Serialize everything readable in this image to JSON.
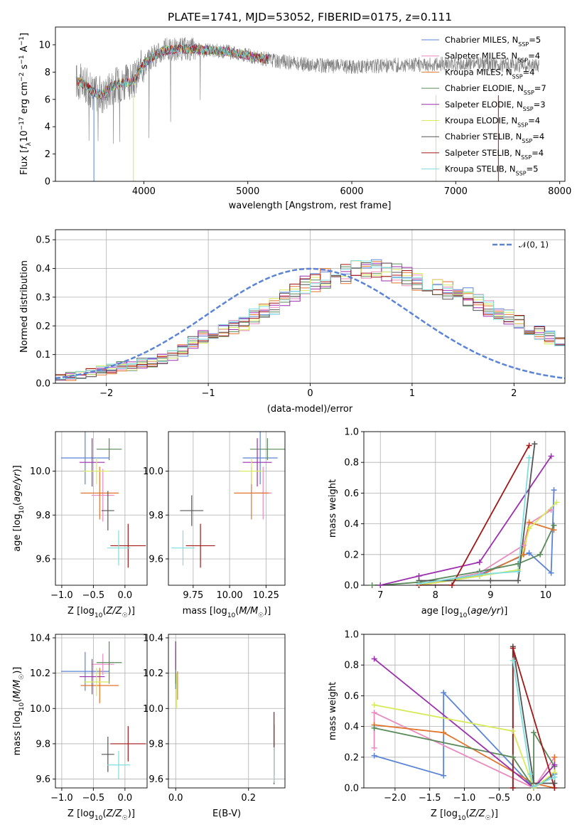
{
  "title": "PLATE=1741, MJD=53052, FIBERID=0175, z=0.111",
  "colors": {
    "Chabrier MILES": "#5b84d6",
    "Salpeter MILES": "#e98bbf",
    "Kroupa MILES": "#e0742a",
    "Chabrier ELODIE": "#5a8a5a",
    "Salpeter ELODIE": "#9c2fae",
    "Kroupa ELODIE": "#d6ea5a",
    "Chabrier STELIB": "#555555",
    "Salpeter STELIB": "#a01818",
    "Kroupa STELIB": "#7fdede",
    "data": "#808080",
    "normal": "#5b84d6"
  },
  "chart_data": [
    {
      "id": "spectrum",
      "type": "line",
      "title": "PLATE=1741, MJD=53052, FIBERID=0175, z=0.111",
      "xlabel": "wavelength [Angstrom, rest frame]",
      "ylabel": "Flux [f_λ 10^-17 erg cm^-2 s^-1 A^-1]",
      "xlim": [
        3150,
        8050
      ],
      "ylim": [
        0,
        11.3
      ],
      "xticks": [
        4000,
        5000,
        6000,
        7000,
        8000
      ],
      "yticks": [
        0,
        2,
        4,
        6,
        8,
        10
      ],
      "grid": false,
      "legend_position": "top-right",
      "legend": [
        {
          "name": "Chabrier MILES",
          "nssp": "5"
        },
        {
          "name": "Salpeter MILES",
          "nssp": "4"
        },
        {
          "name": "Kroupa MILES",
          "nssp": "4"
        },
        {
          "name": "Chabrier ELODIE",
          "nssp": "7"
        },
        {
          "name": "Salpeter ELODIE",
          "nssp": "3"
        },
        {
          "name": "Kroupa ELODIE",
          "nssp": "4"
        },
        {
          "name": "Chabrier STELIB",
          "nssp": "4"
        },
        {
          "name": "Salpeter STELIB",
          "nssp": "4"
        },
        {
          "name": "Kroupa STELIB",
          "nssp": "5"
        }
      ],
      "continuum_x": [
        3350,
        3450,
        3500,
        3600,
        3700,
        3800,
        3900,
        4000,
        4100,
        4200,
        4400,
        4600,
        4800,
        5000,
        5300,
        5600,
        6000,
        6400,
        6800,
        7200,
        7600,
        7800
      ],
      "continuum_y": [
        7.4,
        7.0,
        6.6,
        6.3,
        7.0,
        7.2,
        7.3,
        8.6,
        9.2,
        9.6,
        9.7,
        9.6,
        9.5,
        9.2,
        8.8,
        8.5,
        8.4,
        8.5,
        8.6,
        8.6,
        8.5,
        8.4
      ],
      "model_x_range": [
        3350,
        5200
      ]
    },
    {
      "id": "residuals",
      "type": "histogram",
      "xlabel": "(data-model)/error",
      "ylabel": "Normed distribution",
      "xlim": [
        -2.5,
        2.5
      ],
      "ylim": [
        0,
        0.535
      ],
      "xticks": [
        -2,
        -1,
        0,
        1,
        2
      ],
      "yticks": [
        0.0,
        0.1,
        0.2,
        0.3,
        0.4,
        0.5
      ],
      "grid": true,
      "legend_position": "top-right",
      "legend": [
        "𝒩(0, 1)"
      ],
      "bin_width": 0.1,
      "bin_start": -2.5,
      "base_profile": [
        0.02,
        0.025,
        0.03,
        0.04,
        0.045,
        0.05,
        0.06,
        0.06,
        0.07,
        0.075,
        0.085,
        0.1,
        0.115,
        0.14,
        0.16,
        0.17,
        0.18,
        0.195,
        0.21,
        0.23,
        0.25,
        0.27,
        0.3,
        0.32,
        0.34,
        0.35,
        0.365,
        0.37,
        0.38,
        0.39,
        0.4,
        0.4,
        0.395,
        0.385,
        0.37,
        0.355,
        0.34,
        0.33,
        0.32,
        0.31,
        0.3,
        0.28,
        0.26,
        0.245,
        0.23,
        0.21,
        0.19,
        0.175,
        0.16,
        0.145,
        0.13,
        0.12,
        0.1,
        0.09,
        0.08,
        0.07,
        0.06,
        0.05,
        0.045,
        0.04
      ],
      "normal_curve": {
        "mean": 0,
        "sigma": 1
      }
    },
    {
      "id": "age_vs_Z",
      "type": "errorbar",
      "xlabel": "Z [log10(Z/Z_sun)]",
      "ylabel": "age [log10(age/yr)]",
      "xlim": [
        -1.1,
        0.35
      ],
      "ylim": [
        9.48,
        10.18
      ],
      "xticks": [
        -1.0,
        -0.5,
        0.0
      ],
      "yticks": [
        9.6,
        9.8,
        10.0
      ],
      "grid": true,
      "points": [
        {
          "model": "Chabrier MILES",
          "x": -0.63,
          "xerr": 0.38,
          "y": 10.06,
          "yerr": 0.12
        },
        {
          "model": "Salpeter MILES",
          "x": -0.35,
          "xerr": 0.18,
          "y": 9.89,
          "yerr": 0.12
        },
        {
          "model": "Kroupa MILES",
          "x": -0.4,
          "xerr": 0.3,
          "y": 9.9,
          "yerr": 0.12
        },
        {
          "model": "Chabrier ELODIE",
          "x": -0.25,
          "xerr": 0.2,
          "y": 10.1,
          "yerr": 0.05
        },
        {
          "model": "Salpeter ELODIE",
          "x": -0.52,
          "xerr": 0.2,
          "y": 10.04,
          "yerr": 0.11
        },
        {
          "model": "Kroupa ELODIE",
          "x": -0.45,
          "xerr": 0.2,
          "y": 10.0,
          "yerr": 0.06
        },
        {
          "model": "Chabrier STELIB",
          "x": -0.27,
          "xerr": 0.1,
          "y": 9.82,
          "yerr": 0.09
        },
        {
          "model": "Salpeter STELIB",
          "x": 0.05,
          "xerr": 0.28,
          "y": 9.66,
          "yerr": 0.1
        },
        {
          "model": "Kroupa STELIB",
          "x": -0.1,
          "xerr": 0.18,
          "y": 9.65,
          "yerr": 0.08
        }
      ]
    },
    {
      "id": "age_vs_mass",
      "type": "errorbar",
      "xlabel": "mass [log10(M/M_sun)]",
      "ylabel": "",
      "xlim": [
        9.58,
        10.38
      ],
      "ylim": [
        9.48,
        10.18
      ],
      "xticks": [
        9.75,
        10.0,
        10.25
      ],
      "yticks": [
        9.6,
        9.8,
        10.0
      ],
      "grid": true,
      "points": [
        {
          "model": "Chabrier MILES",
          "x": 10.21,
          "xerr": 0.12,
          "y": 10.06,
          "yerr": 0.12
        },
        {
          "model": "Salpeter MILES",
          "x": 10.23,
          "xerr": 0.06,
          "y": 9.9,
          "yerr": 0.12
        },
        {
          "model": "Kroupa MILES",
          "x": 10.15,
          "xerr": 0.12,
          "y": 9.9,
          "yerr": 0.12
        },
        {
          "model": "Chabrier ELODIE",
          "x": 10.26,
          "xerr": 0.12,
          "y": 10.1,
          "yerr": 0.05
        },
        {
          "model": "Salpeter ELODIE",
          "x": 10.19,
          "xerr": 0.1,
          "y": 10.04,
          "yerr": 0.11
        },
        {
          "model": "Kroupa ELODIE",
          "x": 10.15,
          "xerr": 0.08,
          "y": 10.0,
          "yerr": 0.06
        },
        {
          "model": "Chabrier STELIB",
          "x": 9.74,
          "xerr": 0.08,
          "y": 9.82,
          "yerr": 0.07
        },
        {
          "model": "Salpeter STELIB",
          "x": 9.8,
          "xerr": 0.1,
          "y": 9.66,
          "yerr": 0.1
        },
        {
          "model": "Kroupa STELIB",
          "x": 9.68,
          "xerr": 0.08,
          "y": 9.65,
          "yerr": 0.08
        }
      ]
    },
    {
      "id": "weight_vs_age",
      "type": "line",
      "xlabel": "age [log10(age/yr)]",
      "ylabel": "mass weight",
      "xlim": [
        6.7,
        10.35
      ],
      "ylim": [
        0,
        1.0
      ],
      "xticks": [
        7,
        8,
        9,
        10
      ],
      "yticks": [
        0.0,
        0.2,
        0.4,
        0.6,
        0.8,
        1.0
      ],
      "grid": true,
      "series": [
        {
          "model": "Chabrier MILES",
          "x": [
            7.7,
            8.8,
            9.7,
            10.1,
            10.15
          ],
          "y": [
            0.0,
            0.07,
            0.21,
            0.08,
            0.62
          ]
        },
        {
          "model": "Salpeter MILES",
          "x": [
            7.7,
            8.8,
            9.6,
            9.7,
            10.1
          ],
          "y": [
            0.0,
            0.08,
            0.26,
            0.4,
            0.49
          ]
        },
        {
          "model": "Kroupa MILES",
          "x": [
            7.7,
            8.8,
            9.6,
            9.7,
            10.15
          ],
          "y": [
            0.0,
            0.06,
            0.2,
            0.41,
            0.36
          ]
        },
        {
          "model": "Chabrier ELODIE",
          "x": [
            6.85,
            7.0,
            7.7,
            8.8,
            9.5,
            9.9,
            10.15
          ],
          "y": [
            0.0,
            0.0,
            0.02,
            0.09,
            0.14,
            0.2,
            0.39
          ]
        },
        {
          "model": "Salpeter ELODIE",
          "x": [
            7.0,
            7.7,
            8.8,
            10.1
          ],
          "y": [
            0.0,
            0.06,
            0.15,
            0.84
          ]
        },
        {
          "model": "Kroupa ELODIE",
          "x": [
            7.7,
            8.8,
            9.5,
            9.7,
            10.2
          ],
          "y": [
            0.0,
            0.06,
            0.1,
            0.37,
            0.54
          ]
        },
        {
          "model": "Chabrier STELIB",
          "x": [
            7.7,
            9.0,
            9.5,
            9.8
          ],
          "y": [
            0.03,
            0.03,
            0.03,
            0.92
          ]
        },
        {
          "model": "Salpeter STELIB",
          "x": [
            7.7,
            8.3,
            9.7
          ],
          "y": [
            0.0,
            0.0,
            0.91
          ]
        },
        {
          "model": "Kroupa STELIB",
          "x": [
            7.7,
            8.8,
            9.5,
            9.7
          ],
          "y": [
            0.01,
            0.07,
            0.09,
            0.83
          ]
        }
      ]
    },
    {
      "id": "mass_vs_Z",
      "type": "errorbar",
      "xlabel": "Z [log10(Z/Z_sun)]",
      "ylabel": "mass [log10(M/M_sun)]",
      "xlim": [
        -1.1,
        0.35
      ],
      "ylim": [
        9.55,
        10.42
      ],
      "xticks": [
        -1.0,
        -0.5,
        0.0
      ],
      "yticks": [
        9.6,
        9.8,
        10.0,
        10.2,
        10.4
      ],
      "grid": true,
      "points": [
        {
          "model": "Chabrier MILES",
          "x": -0.63,
          "xerr": 0.38,
          "y": 10.21,
          "yerr": 0.11
        },
        {
          "model": "Salpeter MILES",
          "x": -0.35,
          "xerr": 0.18,
          "y": 10.25,
          "yerr": 0.06
        },
        {
          "model": "Kroupa MILES",
          "x": -0.4,
          "xerr": 0.3,
          "y": 10.13,
          "yerr": 0.1
        },
        {
          "model": "Chabrier ELODIE",
          "x": -0.25,
          "xerr": 0.2,
          "y": 10.26,
          "yerr": 0.12
        },
        {
          "model": "Salpeter ELODIE",
          "x": -0.52,
          "xerr": 0.2,
          "y": 10.18,
          "yerr": 0.1
        },
        {
          "model": "Kroupa ELODIE",
          "x": -0.45,
          "xerr": 0.2,
          "y": 10.15,
          "yerr": 0.08
        },
        {
          "model": "Chabrier STELIB",
          "x": -0.27,
          "xerr": 0.1,
          "y": 9.74,
          "yerr": 0.1
        },
        {
          "model": "Salpeter STELIB",
          "x": 0.05,
          "xerr": 0.28,
          "y": 9.8,
          "yerr": 0.1
        },
        {
          "model": "Kroupa STELIB",
          "x": -0.1,
          "xerr": 0.18,
          "y": 9.68,
          "yerr": 0.08
        }
      ]
    },
    {
      "id": "mass_vs_EBV",
      "type": "errorbar",
      "xlabel": "E(B-V)",
      "ylabel": "",
      "xlim": [
        -0.02,
        0.3
      ],
      "ylim": [
        9.55,
        10.42
      ],
      "xticks": [
        0.0,
        0.2
      ],
      "yticks": [
        9.6,
        9.8,
        10.0,
        10.2,
        10.4
      ],
      "grid": true,
      "points": [
        {
          "model": "Chabrier MILES",
          "x": 0.0,
          "xerr": 0.0,
          "y": 10.21,
          "yerr": 0.1
        },
        {
          "model": "Salpeter MILES",
          "x": 0.0,
          "xerr": 0.0,
          "y": 10.25,
          "yerr": 0.08
        },
        {
          "model": "Kroupa MILES",
          "x": 0.005,
          "xerr": 0.0,
          "y": 10.13,
          "yerr": 0.08
        },
        {
          "model": "Chabrier ELODIE",
          "x": 0.0,
          "xerr": 0.0,
          "y": 10.26,
          "yerr": 0.12
        },
        {
          "model": "Salpeter ELODIE",
          "x": 0.0,
          "xerr": 0.0,
          "y": 10.3,
          "yerr": 0.08
        },
        {
          "model": "Kroupa ELODIE",
          "x": 0.003,
          "xerr": 0.0,
          "y": 10.1,
          "yerr": 0.1
        },
        {
          "model": "Chabrier STELIB",
          "x": 0.27,
          "xerr": 0.0,
          "y": 9.74,
          "yerr": 0.17
        },
        {
          "model": "Salpeter STELIB",
          "x": 0.27,
          "xerr": 0.0,
          "y": 9.8,
          "yerr": 0.18
        },
        {
          "model": "Kroupa STELIB",
          "x": 0.27,
          "xerr": 0.0,
          "y": 9.68,
          "yerr": 0.1
        }
      ]
    },
    {
      "id": "weight_vs_Z",
      "type": "line",
      "xlabel": "Z [log10(Z/Z_sun)]",
      "ylabel": "mass weight",
      "xlim": [
        -2.45,
        0.45
      ],
      "ylim": [
        0,
        1.0
      ],
      "xticks": [
        -2.0,
        -1.5,
        -1.0,
        -0.5,
        0.0
      ],
      "yticks": [
        0.0,
        0.2,
        0.4,
        0.6,
        0.8,
        1.0
      ],
      "grid": true,
      "series": [
        {
          "model": "Chabrier MILES",
          "x": [
            -2.3,
            -1.3,
            -1.3,
            0.0,
            0.3
          ],
          "y": [
            0.21,
            0.08,
            0.62,
            0.0,
            0.09
          ]
        },
        {
          "model": "Salpeter MILES",
          "x": [
            -2.3,
            -2.3,
            0.0,
            0.3
          ],
          "y": [
            0.26,
            0.49,
            0.0,
            0.2
          ]
        },
        {
          "model": "Kroupa MILES",
          "x": [
            -2.3,
            -1.3,
            0.0,
            0.3,
            0.3
          ],
          "y": [
            0.41,
            0.36,
            0.03,
            0.0,
            0.2
          ]
        },
        {
          "model": "Chabrier ELODIE",
          "x": [
            -2.3,
            -0.3,
            0.0,
            0.0,
            0.3
          ],
          "y": [
            0.39,
            0.2,
            0.0,
            0.36,
            0.14
          ]
        },
        {
          "model": "Salpeter ELODIE",
          "x": [
            -2.3,
            0.0,
            0.3
          ],
          "y": [
            0.84,
            0.0,
            0.15
          ]
        },
        {
          "model": "Kroupa ELODIE",
          "x": [
            -2.3,
            -0.3,
            0.0,
            0.3
          ],
          "y": [
            0.54,
            0.37,
            0.0,
            0.1
          ]
        },
        {
          "model": "Chabrier STELIB",
          "x": [
            -0.3,
            -0.3,
            0.0,
            0.3
          ],
          "y": [
            0.0,
            0.92,
            0.03,
            0.03
          ]
        },
        {
          "model": "Salpeter STELIB",
          "x": [
            -0.3,
            -0.3,
            0.3
          ],
          "y": [
            0.0,
            0.91,
            0.0
          ]
        },
        {
          "model": "Kroupa STELIB",
          "x": [
            -0.3,
            -0.05,
            0.0,
            0.3
          ],
          "y": [
            0.83,
            0.09,
            0.01,
            0.07
          ]
        }
      ]
    }
  ]
}
